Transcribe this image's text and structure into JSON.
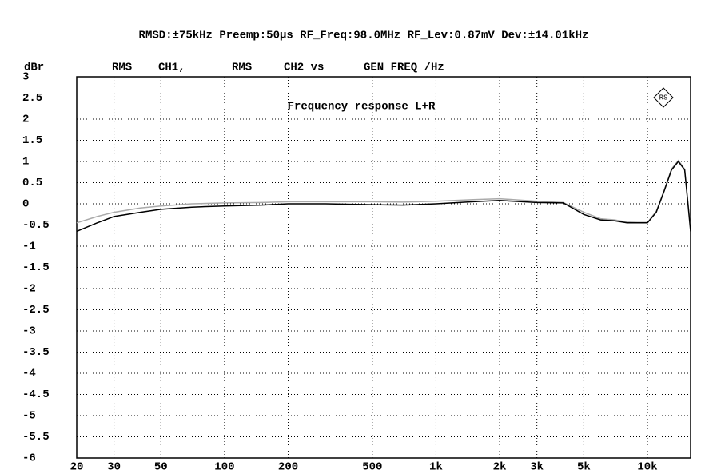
{
  "chart_data": {
    "type": "line",
    "header": "RMSD:±75kHz Preemp:50µs RF_Freq:98.0MHz RF_Lev:0.87mV Dev:±14.01kHz",
    "ylabel": "dBr",
    "axis_header": [
      "RMS",
      "CH1,",
      "RMS",
      "CH2 vs",
      "GEN FREQ /Hz"
    ],
    "annotation": "Frequency response L+R",
    "log_x": true,
    "grid": true,
    "xlim": [
      20,
      16000
    ],
    "ylim": [
      -6,
      3
    ],
    "xticks": [
      20,
      30,
      50,
      100,
      200,
      500,
      {
        "value": 1000,
        "label": "1k"
      },
      {
        "value": 2000,
        "label": "2k"
      },
      {
        "value": 3000,
        "label": "3k"
      },
      {
        "value": 5000,
        "label": "5k"
      },
      {
        "value": 10000,
        "label": "10k"
      }
    ],
    "yticks": [
      3,
      2.5,
      2,
      1.5,
      1,
      0.5,
      0,
      -0.5,
      -1,
      -1.5,
      -2,
      -2.5,
      -3,
      -3.5,
      -4,
      -4.5,
      -5,
      -5.5,
      -6
    ],
    "x": [
      20,
      25,
      30,
      40,
      50,
      70,
      100,
      150,
      200,
      300,
      500,
      700,
      1000,
      1500,
      2000,
      3000,
      4000,
      5000,
      6000,
      7000,
      8000,
      9000,
      10000,
      11000,
      12000,
      13000,
      14000,
      15000,
      16000
    ],
    "series": [
      {
        "color": "#aaaaaa",
        "values": [
          -0.45,
          -0.3,
          -0.2,
          -0.1,
          -0.05,
          0,
          0.02,
          0.03,
          0.05,
          0.05,
          0.05,
          0.04,
          0.06,
          0.1,
          0.12,
          0.06,
          0.03,
          -0.2,
          -0.35,
          -0.38,
          -0.43,
          -0.44,
          -0.44,
          -0.18,
          0.32,
          0.82,
          1.02,
          0.82,
          -0.6
        ]
      },
      {
        "color": "#000000",
        "values": [
          -0.65,
          -0.45,
          -0.3,
          -0.2,
          -0.13,
          -0.08,
          -0.05,
          -0.03,
          0,
          0,
          -0.02,
          -0.03,
          0,
          0.05,
          0.08,
          0.03,
          0.02,
          -0.25,
          -0.38,
          -0.4,
          -0.45,
          -0.45,
          -0.45,
          -0.2,
          0.3,
          0.8,
          1.0,
          0.8,
          -0.65
        ]
      }
    ]
  }
}
